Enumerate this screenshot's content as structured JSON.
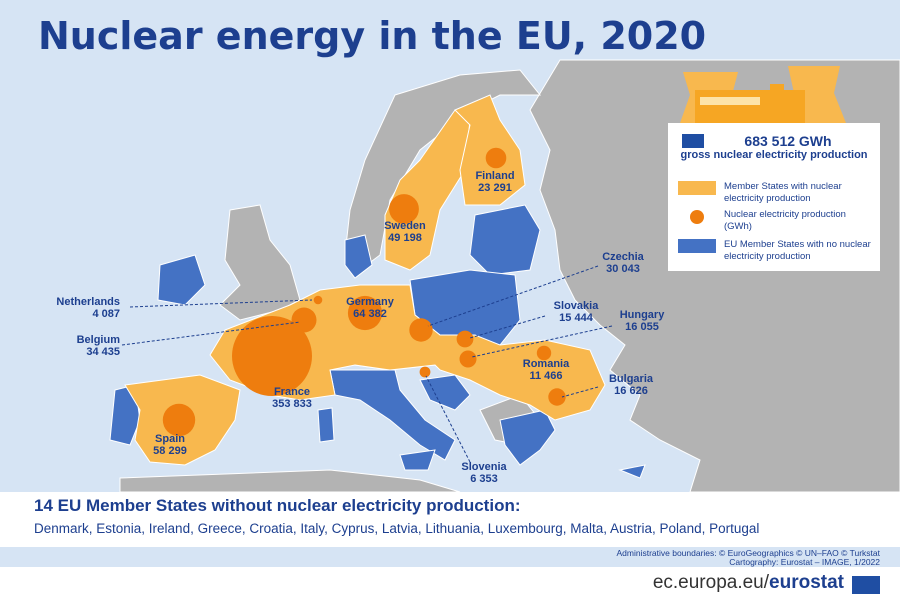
{
  "title": "Nuclear energy in the EU, 2020",
  "colors": {
    "sea": "#d6e4f4",
    "non_eu": "#b3b3b3",
    "nuclear_state": "#f8b84e",
    "production_circle": "#ee7d0e",
    "no_nuclear_state": "#4472c4",
    "text": "#1d3f8f"
  },
  "legend": {
    "total_value": "683 512 GWh",
    "total_label": "gross nuclear electricity production",
    "items": [
      {
        "label": "Member States with nuclear electricity production",
        "swatch": "nuclear-state-swatch"
      },
      {
        "label": "Nuclear electricity production (GWh)",
        "swatch": "production-circle-swatch"
      },
      {
        "label": "EU Member States with no nuclear electricity production",
        "swatch": "no-nuclear-swatch"
      }
    ]
  },
  "countries": [
    {
      "name": "Finland",
      "value": "23 291",
      "gwh": 23291
    },
    {
      "name": "Sweden",
      "value": "49 198",
      "gwh": 49198
    },
    {
      "name": "Netherlands",
      "value": "4 087",
      "gwh": 4087
    },
    {
      "name": "Belgium",
      "value": "34 435",
      "gwh": 34435
    },
    {
      "name": "Germany",
      "value": "64 382",
      "gwh": 64382
    },
    {
      "name": "Czechia",
      "value": "30 043",
      "gwh": 30043
    },
    {
      "name": "Slovakia",
      "value": "15 444",
      "gwh": 15444
    },
    {
      "name": "Hungary",
      "value": "16 055",
      "gwh": 16055
    },
    {
      "name": "Romania",
      "value": "11 466",
      "gwh": 11466
    },
    {
      "name": "Bulgaria",
      "value": "16 626",
      "gwh": 16626
    },
    {
      "name": "France",
      "value": "353 833",
      "gwh": 353833
    },
    {
      "name": "Spain",
      "value": "58 299",
      "gwh": 58299
    },
    {
      "name": "Slovenia",
      "value": "6 353",
      "gwh": 6353
    }
  ],
  "no_nuclear": {
    "heading": "14 EU Member States without nuclear electricity production:",
    "list": "Denmark, Estonia, Ireland, Greece, Croatia, Italy, Cyprus, Latvia, Lithuania, Luxembourg, Malta, Austria, Poland, Portugal"
  },
  "credits": {
    "line1": "Administrative boundaries: © EuroGeographics © UN–FAO © Turkstat",
    "line2": "Cartography: Eurostat – IMAGE, 1/2022"
  },
  "footer": {
    "url_prefix": "ec.europa.eu/",
    "url_bold": "eurostat"
  }
}
